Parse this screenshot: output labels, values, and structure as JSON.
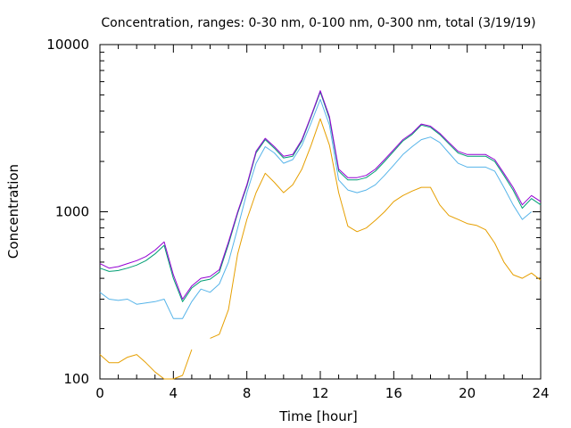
{
  "chart_data": {
    "type": "line",
    "title": "Concentration, ranges: 0-30 nm, 0-100 nm, 0-300 nm, total (3/19/19)",
    "xlabel": "Time [hour]",
    "ylabel": "Concentration",
    "xlim": [
      0,
      24
    ],
    "ylim": [
      100,
      10000
    ],
    "yscale": "log",
    "grid": false,
    "legend": "none",
    "xticks": [
      "0",
      "4",
      "8",
      "12",
      "16",
      "20",
      "24"
    ],
    "yticks": [
      "100",
      "1000",
      "10000"
    ],
    "x": [
      0,
      0.5,
      1,
      1.5,
      2,
      2.5,
      3,
      3.5,
      4,
      4.5,
      5,
      5.5,
      6,
      6.5,
      7,
      7.5,
      8,
      8.5,
      9,
      9.5,
      10,
      10.5,
      11,
      11.5,
      12,
      12.5,
      13,
      13.5,
      14,
      14.5,
      15,
      15.5,
      16,
      16.5,
      17,
      17.5,
      18,
      18.5,
      19,
      19.5,
      20,
      20.5,
      21,
      21.5,
      22,
      22.5,
      23,
      23.5,
      24
    ],
    "series": [
      {
        "color": "#9400d3",
        "values": [
          490,
          460,
          470,
          490,
          510,
          540,
          590,
          660,
          420,
          300,
          360,
          400,
          410,
          450,
          660,
          1000,
          1450,
          2300,
          2750,
          2450,
          2150,
          2200,
          2700,
          3750,
          5300,
          3700,
          1800,
          1600,
          1600,
          1650,
          1800,
          2050,
          2350,
          2700,
          2950,
          3350,
          3250,
          2950,
          2600,
          2300,
          2200,
          2200,
          2200,
          2050,
          1700,
          1400,
          1100,
          1250,
          1150
        ]
      },
      {
        "color": "#009e73",
        "values": [
          460,
          440,
          445,
          460,
          480,
          510,
          560,
          630,
          400,
          290,
          350,
          385,
          395,
          435,
          640,
          980,
          1420,
          2250,
          2700,
          2400,
          2100,
          2150,
          2650,
          3700,
          5200,
          3600,
          1750,
          1550,
          1550,
          1600,
          1750,
          2000,
          2300,
          2650,
          2900,
          3300,
          3200,
          2900,
          2550,
          2250,
          2150,
          2150,
          2150,
          2000,
          1650,
          1350,
          1050,
          1200,
          1100
        ]
      },
      {
        "color": "#56b4e9",
        "values": [
          330,
          300,
          295,
          300,
          280,
          285,
          290,
          300,
          230,
          230,
          290,
          345,
          330,
          370,
          500,
          800,
          1300,
          1950,
          2450,
          2250,
          1950,
          2050,
          2500,
          3400,
          4700,
          3300,
          1550,
          1350,
          1300,
          1350,
          1450,
          1650,
          1900,
          2200,
          2450,
          2700,
          2800,
          2600,
          2250,
          1950,
          1850,
          1850,
          1850,
          1750,
          1400,
          1100,
          900,
          1000,
          null
        ]
      },
      {
        "color": "#e69f00",
        "values": [
          140,
          125,
          125,
          135,
          140,
          125,
          110,
          100,
          100,
          105,
          150,
          null,
          175,
          185,
          260,
          560,
          900,
          1300,
          1700,
          1500,
          1300,
          1450,
          1800,
          2500,
          3600,
          2500,
          1300,
          820,
          760,
          800,
          890,
          1000,
          1150,
          1250,
          1330,
          1400,
          1400,
          1100,
          950,
          900,
          850,
          830,
          780,
          650,
          500,
          420,
          400,
          430,
          390
        ]
      }
    ]
  }
}
